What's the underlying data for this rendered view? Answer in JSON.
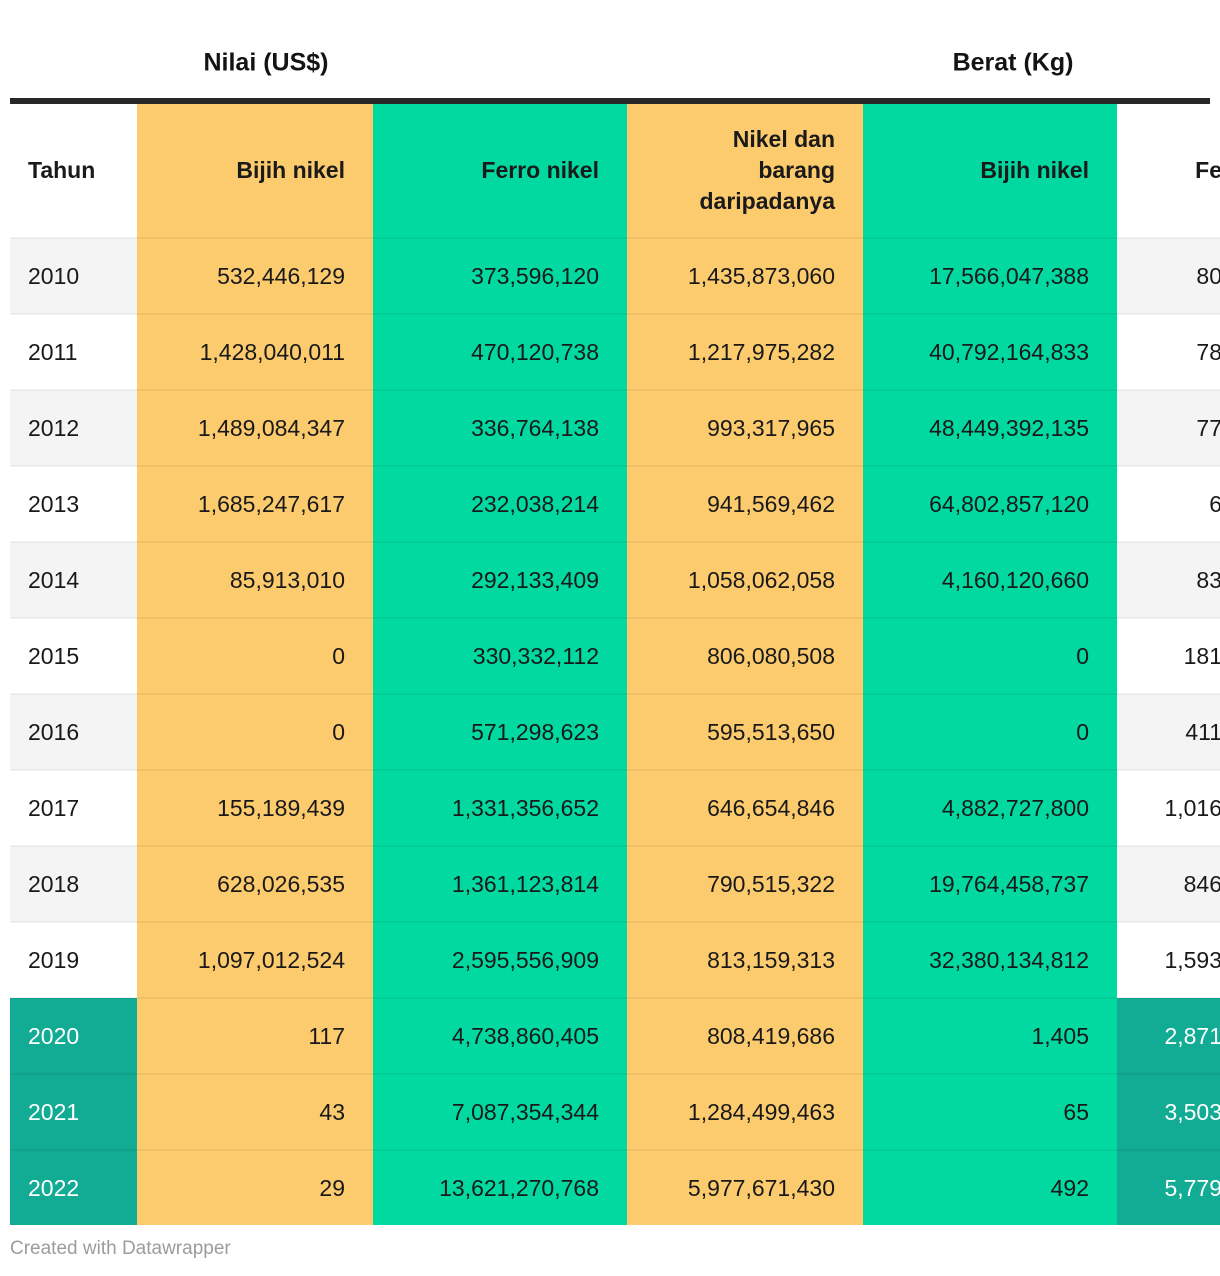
{
  "chart_data": {
    "type": "table",
    "column_groups": [
      {
        "label": "Nilai (US$)"
      },
      {
        "label": "Berat (Kg)"
      }
    ],
    "columns": [
      "Tahun",
      "Bijih nikel",
      "Ferro nikel",
      "Nikel dan barang daripadanya",
      "Bijih nikel",
      "Fe"
    ],
    "rows": [
      [
        "2010",
        "532,446,129",
        "373,596,120",
        "1,435,873,060",
        "17,566,047,388",
        "80"
      ],
      [
        "2011",
        "1,428,040,011",
        "470,120,738",
        "1,217,975,282",
        "40,792,164,833",
        "78"
      ],
      [
        "2012",
        "1,489,084,347",
        "336,764,138",
        "993,317,965",
        "48,449,392,135",
        "77"
      ],
      [
        "2013",
        "1,685,247,617",
        "232,038,214",
        "941,569,462",
        "64,802,857,120",
        "6"
      ],
      [
        "2014",
        "85,913,010",
        "292,133,409",
        "1,058,062,058",
        "4,160,120,660",
        "83"
      ],
      [
        "2015",
        "0",
        "330,332,112",
        "806,080,508",
        "0",
        "181"
      ],
      [
        "2016",
        "0",
        "571,298,623",
        "595,513,650",
        "0",
        "411"
      ],
      [
        "2017",
        "155,189,439",
        "1,331,356,652",
        "646,654,846",
        "4,882,727,800",
        "1,016"
      ],
      [
        "2018",
        "628,026,535",
        "1,361,123,814",
        "790,515,322",
        "19,764,458,737",
        "846"
      ],
      [
        "2019",
        "1,097,012,524",
        "2,595,556,909",
        "813,159,313",
        "32,380,134,812",
        "1,593"
      ],
      [
        "2020",
        "117",
        "4,738,860,405",
        "808,419,686",
        "1,405",
        "2,871"
      ],
      [
        "2021",
        "43",
        "7,087,354,344",
        "1,284,499,463",
        "65",
        "3,503"
      ],
      [
        "2022",
        "29",
        "13,621,270,768",
        "5,977,671,430",
        "492",
        "5,779"
      ]
    ],
    "highlighted_years": [
      "2020",
      "2021",
      "2022"
    ],
    "layout_hints": {
      "striped_rows": true,
      "last_column_truncated_at_right_edge": true
    }
  },
  "colors": {
    "orange_column": "#fccb6e",
    "green_column": "#01d9a1",
    "highlight_teal": "#12ab93",
    "stripe_gray": "#f4f4f4",
    "header_rule": "#272727"
  },
  "footer": {
    "text": "Created with Datawrapper"
  }
}
